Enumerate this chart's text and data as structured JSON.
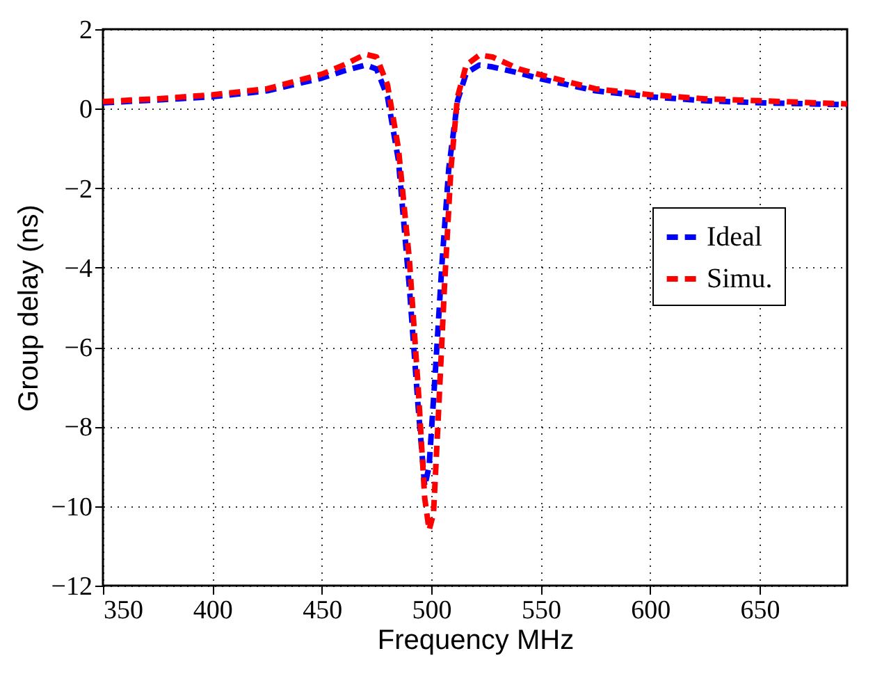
{
  "chart_data": {
    "type": "line",
    "xlabel": "Frequency MHz",
    "ylabel": "Group delay (ns)",
    "xlim": [
      350,
      690
    ],
    "xticks": [
      350,
      400,
      450,
      500,
      550,
      600,
      650
    ],
    "ylim": [
      -12,
      2
    ],
    "yticks": [
      -12,
      -10,
      -8,
      -6,
      -4,
      -2,
      0,
      2
    ],
    "grid": true,
    "legend": "right",
    "line_style": "dashed",
    "marker": "none",
    "series": [
      {
        "name": "Ideal",
        "color": "#0000ff",
        "x": [
          350,
          375,
          400,
          425,
          450,
          460,
          470,
          475,
          480,
          485,
          490,
          494,
          497,
          499,
          502,
          505,
          508,
          512,
          516,
          522,
          528,
          540,
          550,
          575,
          600,
          625,
          650,
          675,
          690
        ],
        "values": [
          0.15,
          0.22,
          0.3,
          0.45,
          0.77,
          0.95,
          1.1,
          1.0,
          0.3,
          -1.3,
          -4.5,
          -7.5,
          -9.5,
          -9.0,
          -6.5,
          -3.8,
          -1.5,
          0.2,
          0.9,
          1.1,
          1.05,
          0.9,
          0.75,
          0.45,
          0.3,
          0.2,
          0.15,
          0.12,
          0.1
        ]
      },
      {
        "name": "Simu.",
        "color": "#ff0000",
        "x": [
          350,
          375,
          400,
          425,
          450,
          460,
          470,
          475,
          480,
          485,
          490,
          494,
          497,
          499,
          501,
          503,
          506,
          509,
          512,
          516,
          522,
          528,
          540,
          550,
          575,
          600,
          625,
          650,
          675,
          690
        ],
        "values": [
          0.18,
          0.25,
          0.35,
          0.5,
          0.87,
          1.1,
          1.37,
          1.3,
          0.6,
          -1.0,
          -3.8,
          -7.0,
          -9.8,
          -10.6,
          -10.2,
          -8.0,
          -4.5,
          -1.5,
          0.3,
          1.1,
          1.35,
          1.3,
          1.0,
          0.85,
          0.5,
          0.35,
          0.25,
          0.2,
          0.15,
          0.12
        ]
      }
    ]
  }
}
